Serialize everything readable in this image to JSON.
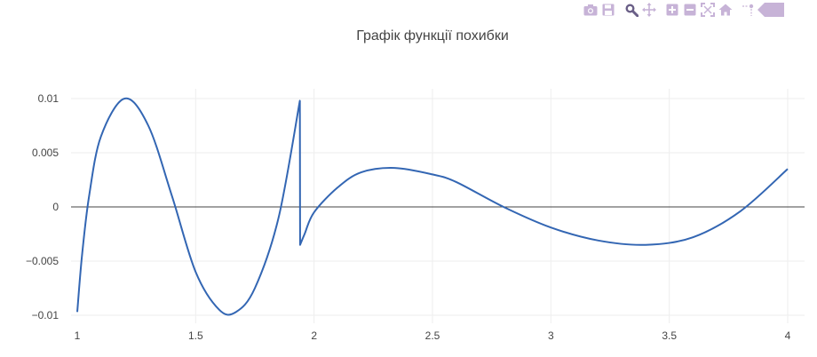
{
  "modebar": {
    "buttons": [
      {
        "name": "camera-icon"
      },
      {
        "name": "save-icon"
      },
      {
        "name": "zoom-icon"
      },
      {
        "name": "pan-icon"
      },
      {
        "name": "zoom-in-icon"
      },
      {
        "name": "zoom-out-icon"
      },
      {
        "name": "autoscale-icon"
      },
      {
        "name": "home-icon"
      },
      {
        "name": "spike-lines-icon"
      },
      {
        "name": "plotly-logo-icon"
      }
    ],
    "colors": {
      "icon": "#c7b3d7",
      "active": "#6a5f87"
    }
  },
  "chart_data": {
    "type": "line",
    "title": "Графік функції похибки",
    "xlabel": "",
    "ylabel": "",
    "xlim": [
      1,
      4
    ],
    "ylim": [
      -0.01,
      0.01
    ],
    "xticks": [
      1,
      1.5,
      2,
      2.5,
      3,
      3.5,
      4
    ],
    "xtick_labels": [
      "1",
      "1.5",
      "2",
      "2.5",
      "3",
      "3.5",
      "4"
    ],
    "yticks": [
      -0.01,
      -0.005,
      0,
      0.005,
      0.01
    ],
    "ytick_labels": [
      "−0.01",
      "−0.005",
      "0",
      "0.005",
      "0.01"
    ],
    "grid": true,
    "line_color": "#3366b3",
    "series": [
      {
        "x": [
          1,
          1.02,
          1.05,
          1.1,
          1.2,
          1.3,
          1.4,
          1.5,
          1.6,
          1.67,
          1.75,
          1.85,
          1.94,
          1.941,
          1.96,
          2.0,
          2.1,
          2.2,
          2.34,
          2.5,
          2.6,
          2.8,
          3.0,
          3.2,
          3.4,
          3.6,
          3.8,
          4.0
        ],
        "y": [
          -0.0097,
          -0.0045,
          0.001,
          0.0065,
          0.01,
          0.0075,
          0.001,
          -0.006,
          -0.0095,
          -0.0097,
          -0.0075,
          -0.001,
          0.0098,
          -0.0035,
          -0.0025,
          -0.0005,
          0.0018,
          0.0032,
          0.0036,
          0.003,
          0.0023,
          0.0,
          -0.0019,
          -0.0031,
          -0.0035,
          -0.0028,
          -0.0004,
          0.0035
        ]
      }
    ]
  }
}
